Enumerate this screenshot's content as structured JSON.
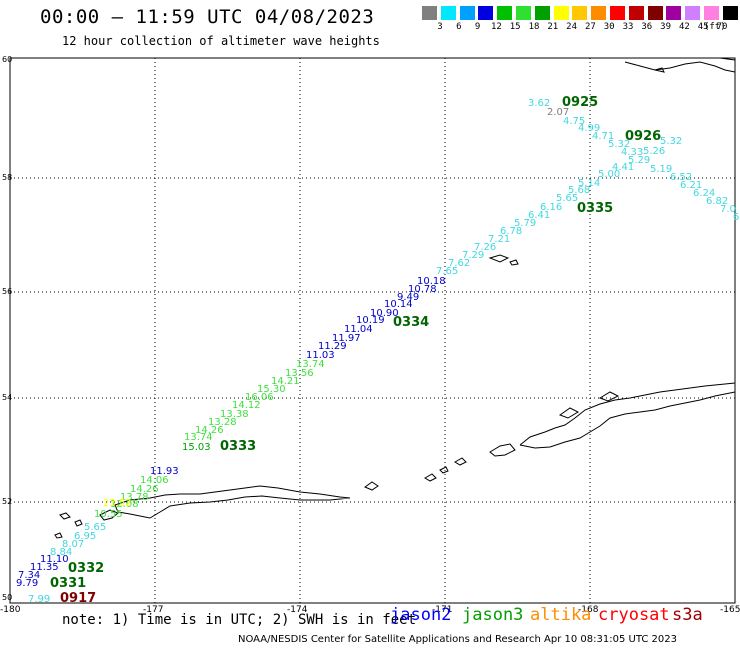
{
  "header": {
    "title": "00:00 – 11:59 UTC 04/08/2023",
    "subtitle": "12 hour collection of altimeter wave heights"
  },
  "colorbar": {
    "unit": "(ft)",
    "swatches": [
      "#808080",
      "#00e8ff",
      "#00a0ff",
      "#0000e0",
      "#00c000",
      "#30e030",
      "#00a000",
      "#ffff00",
      "#ffc800",
      "#ff8c00",
      "#ff0000",
      "#c00000",
      "#800000",
      "#a000a0",
      "#d080ff",
      "#ff80e0",
      "#000000"
    ],
    "labels": [
      "3",
      "6",
      "9",
      "12",
      "15",
      "18",
      "21",
      "24",
      "27",
      "30",
      "33",
      "36",
      "39",
      "42",
      "45",
      "70"
    ]
  },
  "axes": {
    "lat_labels": [
      "60",
      "58",
      "56",
      "54",
      "52",
      "50"
    ],
    "lon_labels": [
      "-180",
      "-177",
      "-174",
      "-171",
      "-168",
      "-165"
    ]
  },
  "footer": {
    "note": "note: 1) Time is in UTC; 2) SWH is in feet",
    "legend": [
      {
        "name": "jason2",
        "color": "#0000ff"
      },
      {
        "name": "jason3",
        "color": "#00a000"
      },
      {
        "name": "altika",
        "color": "#ff8c00"
      },
      {
        "name": "cryosat",
        "color": "#ff0000"
      },
      {
        "name": "s3a",
        "color": "#a00000"
      }
    ],
    "credit": "NOAA/NESDIS Center for Satellite Applications and Research   Apr 10 08:31:05 UTC 2023"
  },
  "time_labels": [
    {
      "text": "0925",
      "color": "#006400"
    },
    {
      "text": "0926",
      "color": "#006400"
    },
    {
      "text": "0335",
      "color": "#006400"
    },
    {
      "text": "0334",
      "color": "#006400"
    },
    {
      "text": "0333",
      "color": "#006400"
    },
    {
      "text": "0332",
      "color": "#006400"
    },
    {
      "text": "0331",
      "color": "#006400"
    },
    {
      "text": "0917",
      "color": "#800000"
    }
  ],
  "wave_heights": [
    {
      "text": "3.62",
      "color": "#40d8e0"
    },
    {
      "text": "2.07",
      "color": "#808080"
    },
    {
      "text": "4.75",
      "color": "#40d8e0"
    },
    {
      "text": "4.99",
      "color": "#40d8e0"
    },
    {
      "text": "4.71",
      "color": "#40d8e0"
    },
    {
      "text": "5.32",
      "color": "#40d8e0"
    },
    {
      "text": "5.32",
      "color": "#40d8e0"
    },
    {
      "text": "4.33",
      "color": "#40d8e0"
    },
    {
      "text": "5.26",
      "color": "#40d8e0"
    },
    {
      "text": "5.29",
      "color": "#40d8e0"
    },
    {
      "text": "4.41",
      "color": "#40d8e0"
    },
    {
      "text": "5.00",
      "color": "#40d8e0"
    },
    {
      "text": "5.19",
      "color": "#40d8e0"
    },
    {
      "text": "6.52",
      "color": "#40d8e0"
    },
    {
      "text": "6.21",
      "color": "#40d8e0"
    },
    {
      "text": "6.24",
      "color": "#40d8e0"
    },
    {
      "text": "6.82",
      "color": "#40d8e0"
    },
    {
      "text": "7.0",
      "color": "#40d8e0"
    },
    {
      "text": "6",
      "color": "#40d8e0"
    },
    {
      "text": "5.14",
      "color": "#40d8e0"
    },
    {
      "text": "5.68",
      "color": "#40d8e0"
    },
    {
      "text": "5.65",
      "color": "#40d8e0"
    },
    {
      "text": "6.16",
      "color": "#40d8e0"
    },
    {
      "text": "6.41",
      "color": "#40d8e0"
    },
    {
      "text": "5.79",
      "color": "#40d8e0"
    },
    {
      "text": "6.78",
      "color": "#40d8e0"
    },
    {
      "text": "7.21",
      "color": "#40d8e0"
    },
    {
      "text": "7.26",
      "color": "#40d8e0"
    },
    {
      "text": "7.29",
      "color": "#40d8e0"
    },
    {
      "text": "7.62",
      "color": "#40d8e0"
    },
    {
      "text": "7.65",
      "color": "#40d8e0"
    },
    {
      "text": "10.18",
      "color": "#0000cc"
    },
    {
      "text": "10.78",
      "color": "#0000cc"
    },
    {
      "text": "9.49",
      "color": "#0000cc"
    },
    {
      "text": "10.14",
      "color": "#0000cc"
    },
    {
      "text": "10.90",
      "color": "#0000cc"
    },
    {
      "text": "10.19",
      "color": "#0000cc"
    },
    {
      "text": "11.04",
      "color": "#0000cc"
    },
    {
      "text": "11.97",
      "color": "#0000cc"
    },
    {
      "text": "11.29",
      "color": "#0000cc"
    },
    {
      "text": "11.03",
      "color": "#0000cc"
    },
    {
      "text": "13.74",
      "color": "#40e040"
    },
    {
      "text": "13.56",
      "color": "#40e040"
    },
    {
      "text": "14.21",
      "color": "#40e040"
    },
    {
      "text": "15.30",
      "color": "#40e040"
    },
    {
      "text": "16.06",
      "color": "#40e040"
    },
    {
      "text": "14.12",
      "color": "#40e040"
    },
    {
      "text": "13.38",
      "color": "#40e040"
    },
    {
      "text": "13.28",
      "color": "#40e040"
    },
    {
      "text": "14.26",
      "color": "#40e040"
    },
    {
      "text": "13.74",
      "color": "#40e040"
    },
    {
      "text": "15.03",
      "color": "#00a000"
    },
    {
      "text": "11.93",
      "color": "#0000cc"
    },
    {
      "text": "14.06",
      "color": "#40e040"
    },
    {
      "text": "14.26",
      "color": "#40e040"
    },
    {
      "text": "13.78",
      "color": "#40e040"
    },
    {
      "text": "12.08",
      "color": "#40e040"
    },
    {
      "text": "23.52",
      "color": "#ffff00"
    },
    {
      "text": "10.55",
      "color": "#40e040"
    },
    {
      "text": "5.65",
      "color": "#40d8e0"
    },
    {
      "text": "6.95",
      "color": "#40d8e0"
    },
    {
      "text": "8.07",
      "color": "#40d8e0"
    },
    {
      "text": "8.84",
      "color": "#40d8e0"
    },
    {
      "text": "11.10",
      "color": "#0000cc"
    },
    {
      "text": "11.35",
      "color": "#0000cc"
    },
    {
      "text": "7.34",
      "color": "#0000cc"
    },
    {
      "text": "9.79",
      "color": "#0000cc"
    },
    {
      "text": "7.99",
      "color": "#40d8e0"
    }
  ]
}
